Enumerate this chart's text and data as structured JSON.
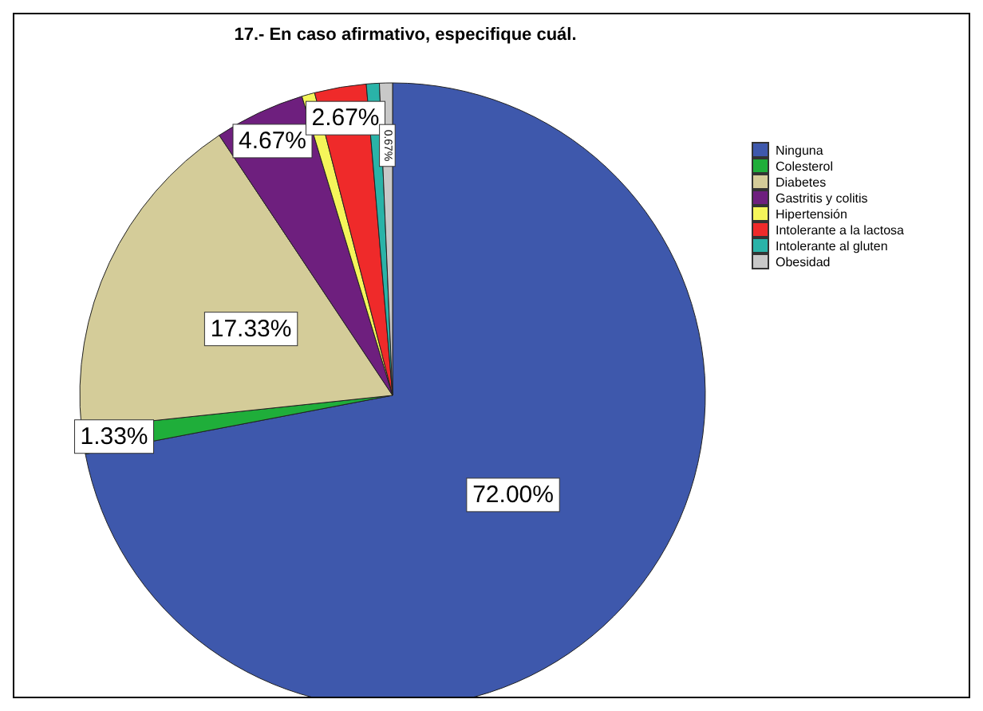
{
  "chart_data": {
    "type": "pie",
    "title": "17.- En caso afirmativo, especifique cuál.",
    "categories": [
      "Ninguna",
      "Colesterol",
      "Diabetes",
      "Gastritis y colitis",
      "Hipertensión",
      "Intolerante a la lactosa",
      "Intolerante al gluten",
      "Obesidad"
    ],
    "values": [
      72.0,
      1.33,
      17.33,
      4.67,
      0.67,
      2.67,
      0.67,
      0.67
    ],
    "value_labels": [
      "72.00%",
      "1.33%",
      "17.33%",
      "4.67%",
      null,
      "2.67%",
      null,
      "0.67%"
    ],
    "colors": [
      "#3e58ac",
      "#1fae3a",
      "#d4cc99",
      "#6e1f7e",
      "#f5f55a",
      "#ef2a2a",
      "#2ab3a8",
      "#c8c8c8"
    ],
    "legend": "right"
  }
}
